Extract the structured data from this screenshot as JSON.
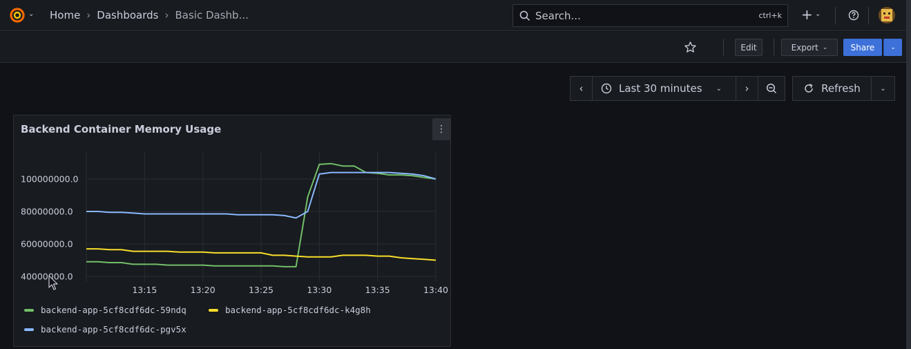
{
  "topbar": {
    "breadcrumbs": [
      "Home",
      "Dashboards",
      "Basic Dashb..."
    ],
    "search_placeholder": "Search...",
    "search_shortcut": "ctrl+k",
    "plus": "+"
  },
  "toolbar": {
    "edit_label": "Edit",
    "export_label": "Export",
    "share_label": "Share"
  },
  "timepicker": {
    "range_label": "Last 30 minutes",
    "refresh_label": "Refresh"
  },
  "panel": {
    "title": "Backend Container Memory Usage"
  },
  "colors": {
    "green": "#73bf69",
    "yellow": "#fade2a",
    "blue": "#8ab8ff",
    "accent": "#3d71d9"
  },
  "chart_data": {
    "type": "line",
    "title": "Backend Container Memory Usage",
    "xlabel": "",
    "ylabel": "",
    "x_ticks": [
      "13:15",
      "13:20",
      "13:25",
      "13:30",
      "13:35",
      "13:40"
    ],
    "y_ticks": [
      "40000000.0",
      "60000000.0",
      "80000000.0",
      "100000000.0"
    ],
    "xlim": [
      "13:10",
      "13:40"
    ],
    "ylim": [
      40000000,
      100000000
    ],
    "grid": true,
    "legend": "bottom",
    "x": [
      "13:10",
      "13:11",
      "13:12",
      "13:13",
      "13:14",
      "13:15",
      "13:16",
      "13:17",
      "13:18",
      "13:19",
      "13:20",
      "13:21",
      "13:22",
      "13:23",
      "13:24",
      "13:25",
      "13:26",
      "13:27",
      "13:28",
      "13:29",
      "13:30",
      "13:31",
      "13:32",
      "13:33",
      "13:34",
      "13:35",
      "13:36",
      "13:37",
      "13:38",
      "13:39",
      "13:40"
    ],
    "series": [
      {
        "name": "backend-app-5cf8cdf6dc-59ndq",
        "color": "#73bf69",
        "values": [
          49000000,
          49000000,
          48500000,
          48500000,
          47500000,
          47500000,
          47500000,
          47000000,
          47000000,
          47000000,
          47000000,
          46500000,
          46500000,
          46500000,
          46500000,
          46500000,
          46500000,
          46000000,
          46000000,
          89000000,
          109000000,
          109500000,
          108000000,
          108000000,
          104000000,
          103500000,
          102500000,
          102500000,
          102000000,
          101000000,
          100000000
        ]
      },
      {
        "name": "backend-app-5cf8cdf6dc-k4g8h",
        "color": "#fade2a",
        "values": [
          57000000,
          57000000,
          56500000,
          56500000,
          55500000,
          55500000,
          55500000,
          55500000,
          55000000,
          55000000,
          55000000,
          54500000,
          54500000,
          54500000,
          54500000,
          54500000,
          53000000,
          53000000,
          52500000,
          52000000,
          52000000,
          52000000,
          53000000,
          53000000,
          53000000,
          52500000,
          52500000,
          51500000,
          51000000,
          50500000,
          50000000
        ]
      },
      {
        "name": "backend-app-5cf8cdf6dc-pgv5x",
        "color": "#8ab8ff",
        "values": [
          80000000,
          80000000,
          79500000,
          79500000,
          79000000,
          78500000,
          78500000,
          78500000,
          78500000,
          78500000,
          78500000,
          78500000,
          78500000,
          78000000,
          78000000,
          78000000,
          78000000,
          77500000,
          76000000,
          80000000,
          103000000,
          104000000,
          104000000,
          104000000,
          104000000,
          104000000,
          104000000,
          103500000,
          103000000,
          102000000,
          100000000
        ]
      }
    ]
  }
}
